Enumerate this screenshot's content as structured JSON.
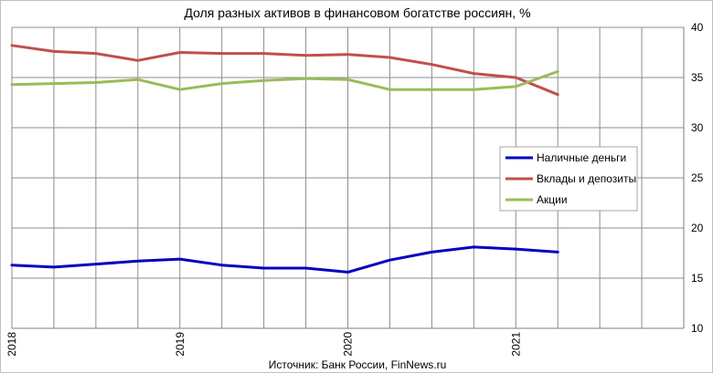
{
  "chart_data": {
    "type": "line",
    "title": "Доля разных активов в финансовом богатстве россиян, %",
    "source": "Источник: Банк России, FinNews.ru",
    "x": [
      2018.0,
      2018.25,
      2018.5,
      2018.75,
      2019.0,
      2019.25,
      2019.5,
      2019.75,
      2020.0,
      2020.25,
      2020.5,
      2020.75,
      2021.0,
      2021.25
    ],
    "xlim": [
      2018,
      2022
    ],
    "x_ticks": [
      2018,
      2019,
      2020,
      2021
    ],
    "x_tick_labels": [
      "2018",
      "2019",
      "2020",
      "2021"
    ],
    "x_minor_step": 0.25,
    "ylim": [
      10,
      40
    ],
    "y_ticks": [
      10,
      15,
      20,
      25,
      30,
      35,
      40
    ],
    "y_tick_labels": [
      "10",
      "15",
      "20",
      "25",
      "30",
      "35",
      "40"
    ],
    "y_axis_side": "right",
    "grid": true,
    "legend_position": "right",
    "series": [
      {
        "name": "Наличные деньги",
        "color": "#0000c0",
        "values": [
          16.3,
          16.1,
          16.4,
          16.7,
          16.9,
          16.3,
          16.0,
          16.0,
          15.6,
          16.8,
          17.6,
          18.1,
          17.9,
          17.6
        ]
      },
      {
        "name": "Вклады и депозиты",
        "color": "#c0504d",
        "values": [
          38.2,
          37.6,
          37.4,
          36.7,
          37.5,
          37.4,
          37.4,
          37.2,
          37.3,
          37.0,
          36.3,
          35.4,
          35.0,
          33.3
        ]
      },
      {
        "name": "Акции",
        "color": "#9bbb59",
        "values": [
          34.3,
          34.4,
          34.5,
          34.8,
          33.8,
          34.4,
          34.7,
          34.9,
          34.8,
          33.8,
          33.8,
          33.8,
          34.1,
          35.6
        ]
      }
    ]
  }
}
